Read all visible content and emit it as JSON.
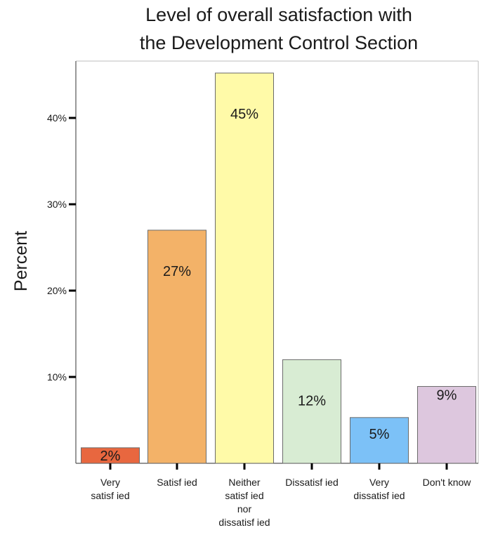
{
  "chart_data": {
    "type": "bar",
    "title": [
      "Level of overall satisfaction with",
      "the Development Control Section"
    ],
    "ylabel": "Percent",
    "xlabel": "",
    "ylim": [
      0,
      47
    ],
    "yticks": [
      10,
      20,
      30,
      40
    ],
    "ytick_labels": [
      "10%",
      "20%",
      "30%",
      "40%"
    ],
    "categories": [
      [
        "Very",
        "satisf ied"
      ],
      [
        "Satisf ied"
      ],
      [
        "Neither",
        "satisf ied",
        "nor",
        "dissatisf ied"
      ],
      [
        "Dissatisf ied"
      ],
      [
        "Very",
        "dissatisf ied"
      ],
      [
        "Don't know"
      ]
    ],
    "values": [
      1.8,
      27,
      45.2,
      12,
      5.3,
      8.9
    ],
    "data_labels": [
      "2%",
      "27%",
      "45%",
      "12%",
      "5%",
      "9%"
    ],
    "colors": [
      "#E8673F",
      "#F3B268",
      "#FFFAA8",
      "#D8ECD3",
      "#7CC1F7",
      "#DDC7DE"
    ],
    "grid": false,
    "legend": "none"
  }
}
